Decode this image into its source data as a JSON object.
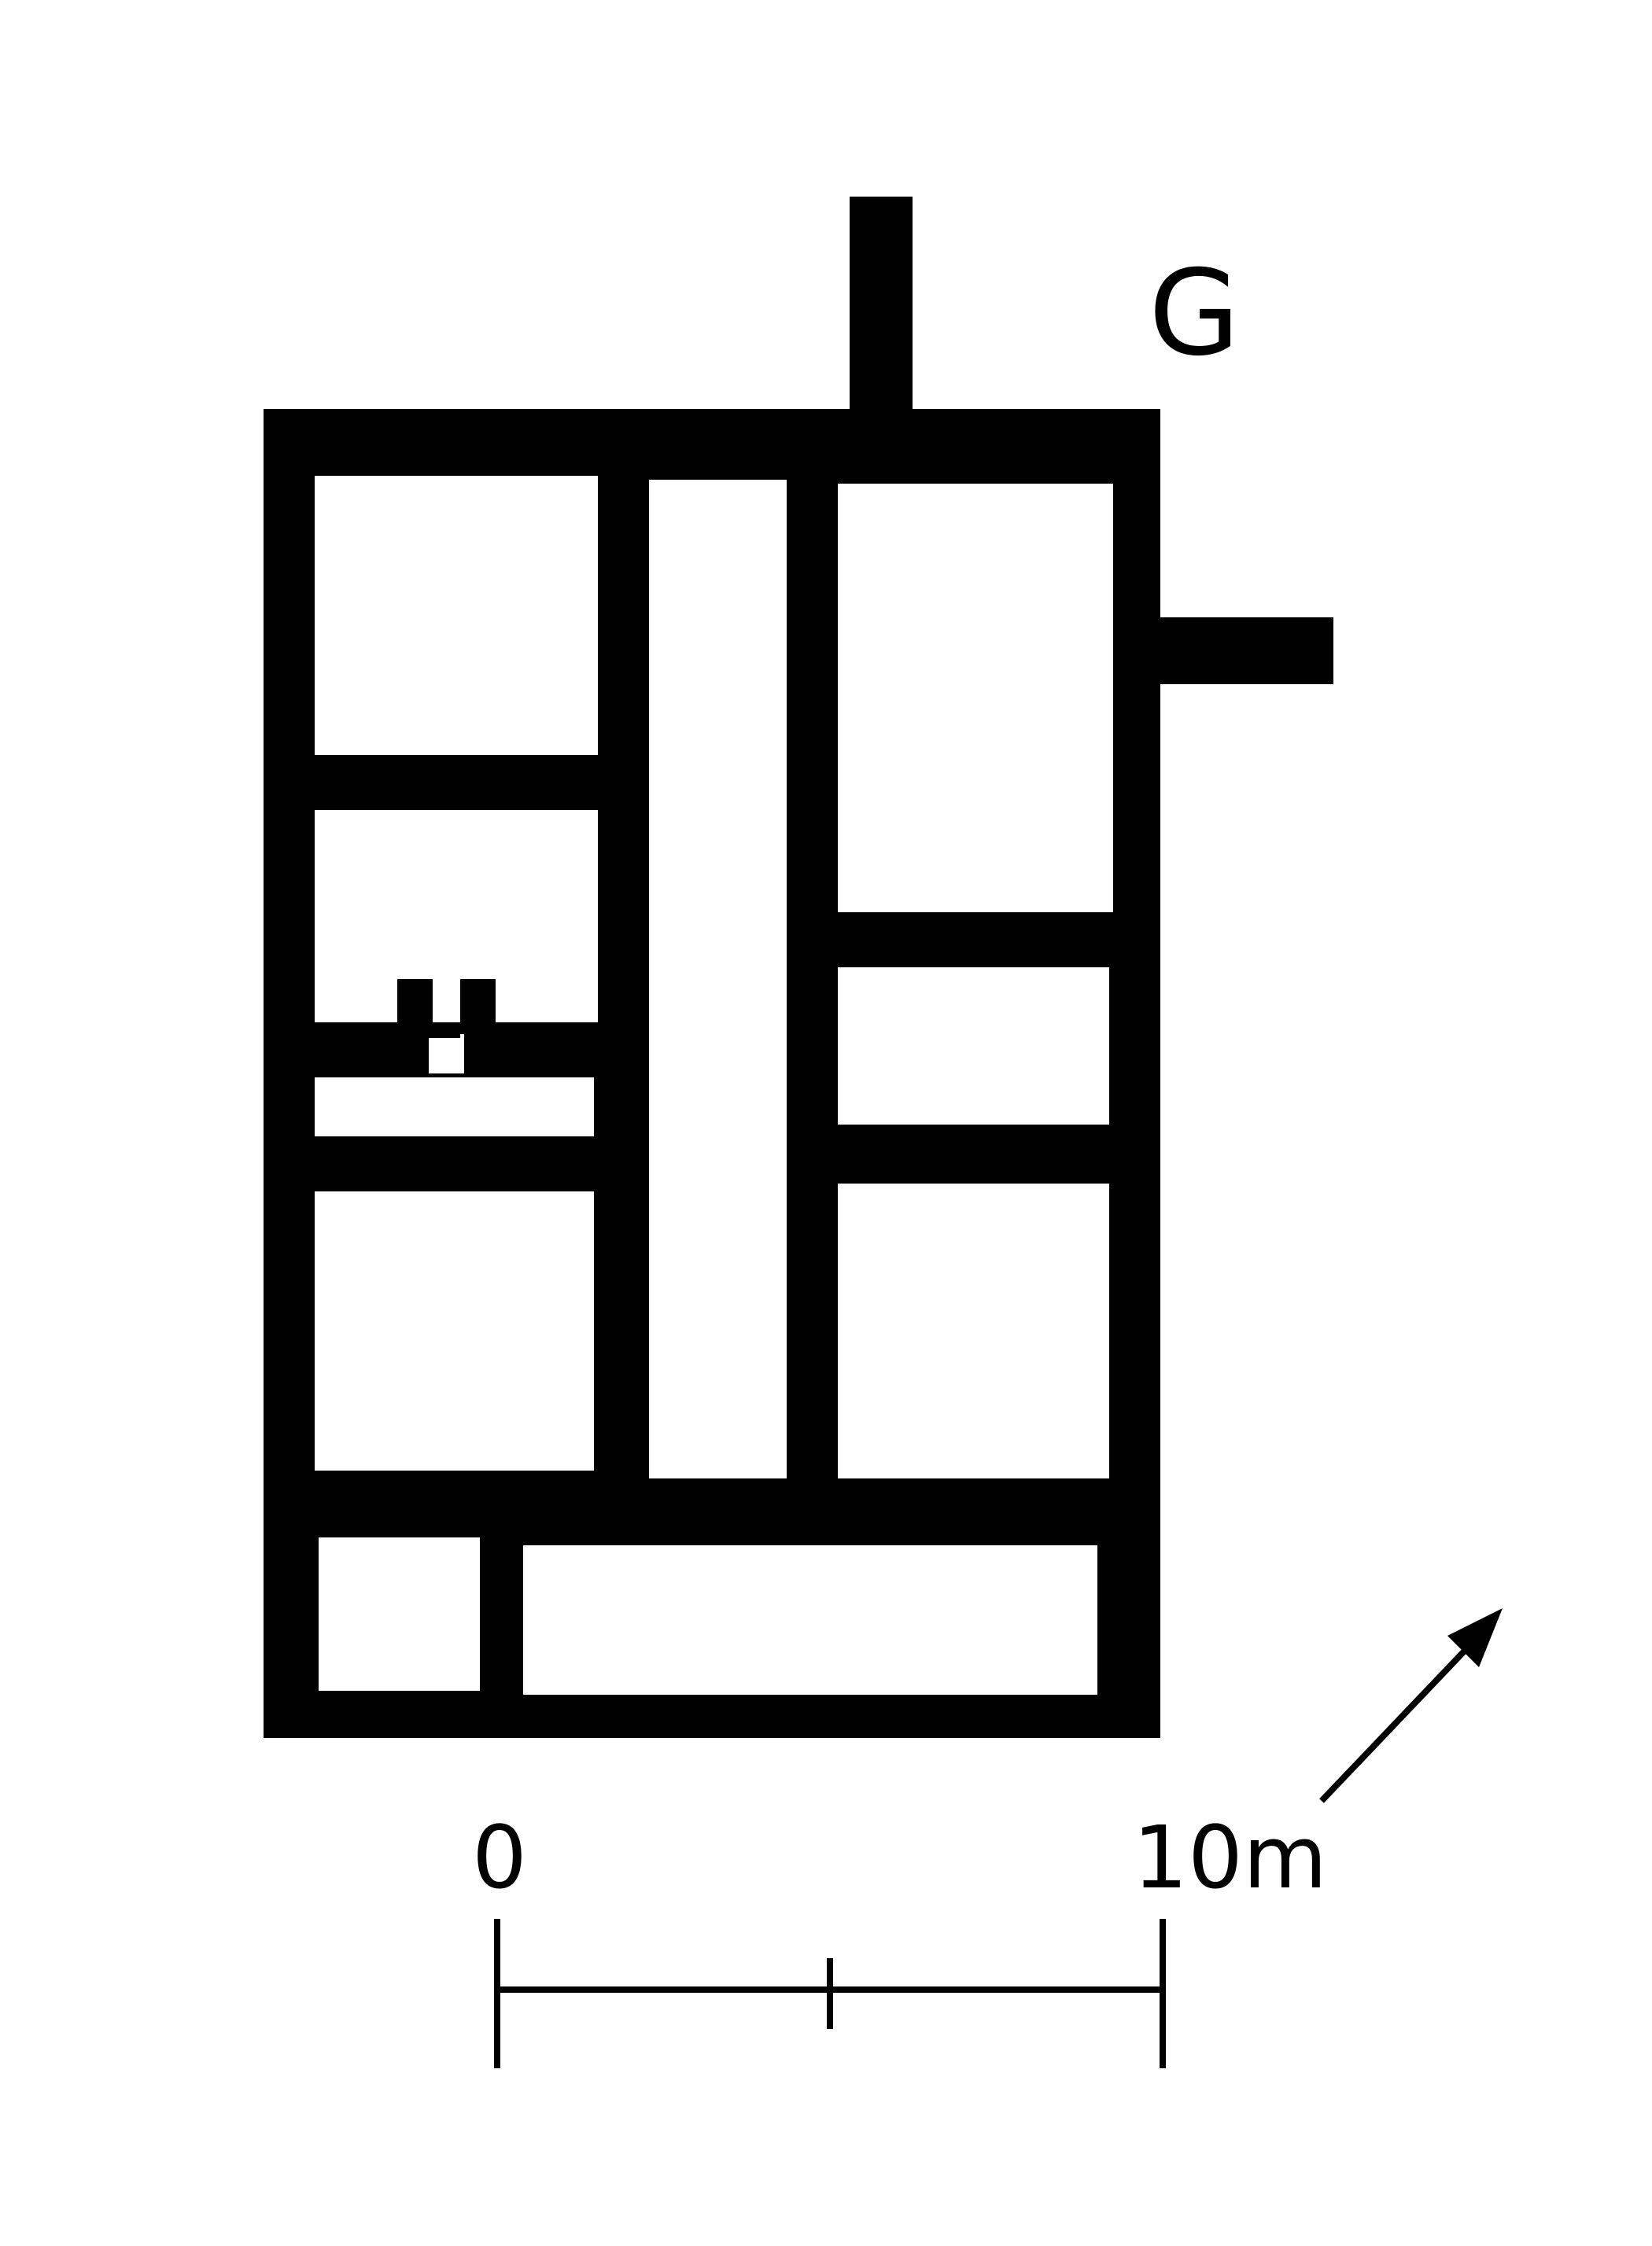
{
  "plan_label": "G",
  "scale": {
    "start_label": "0",
    "end_label": "10m"
  },
  "colors": {
    "ink": "#000000",
    "paper": "#ffffff"
  },
  "north_arrow": "arrow-icon"
}
